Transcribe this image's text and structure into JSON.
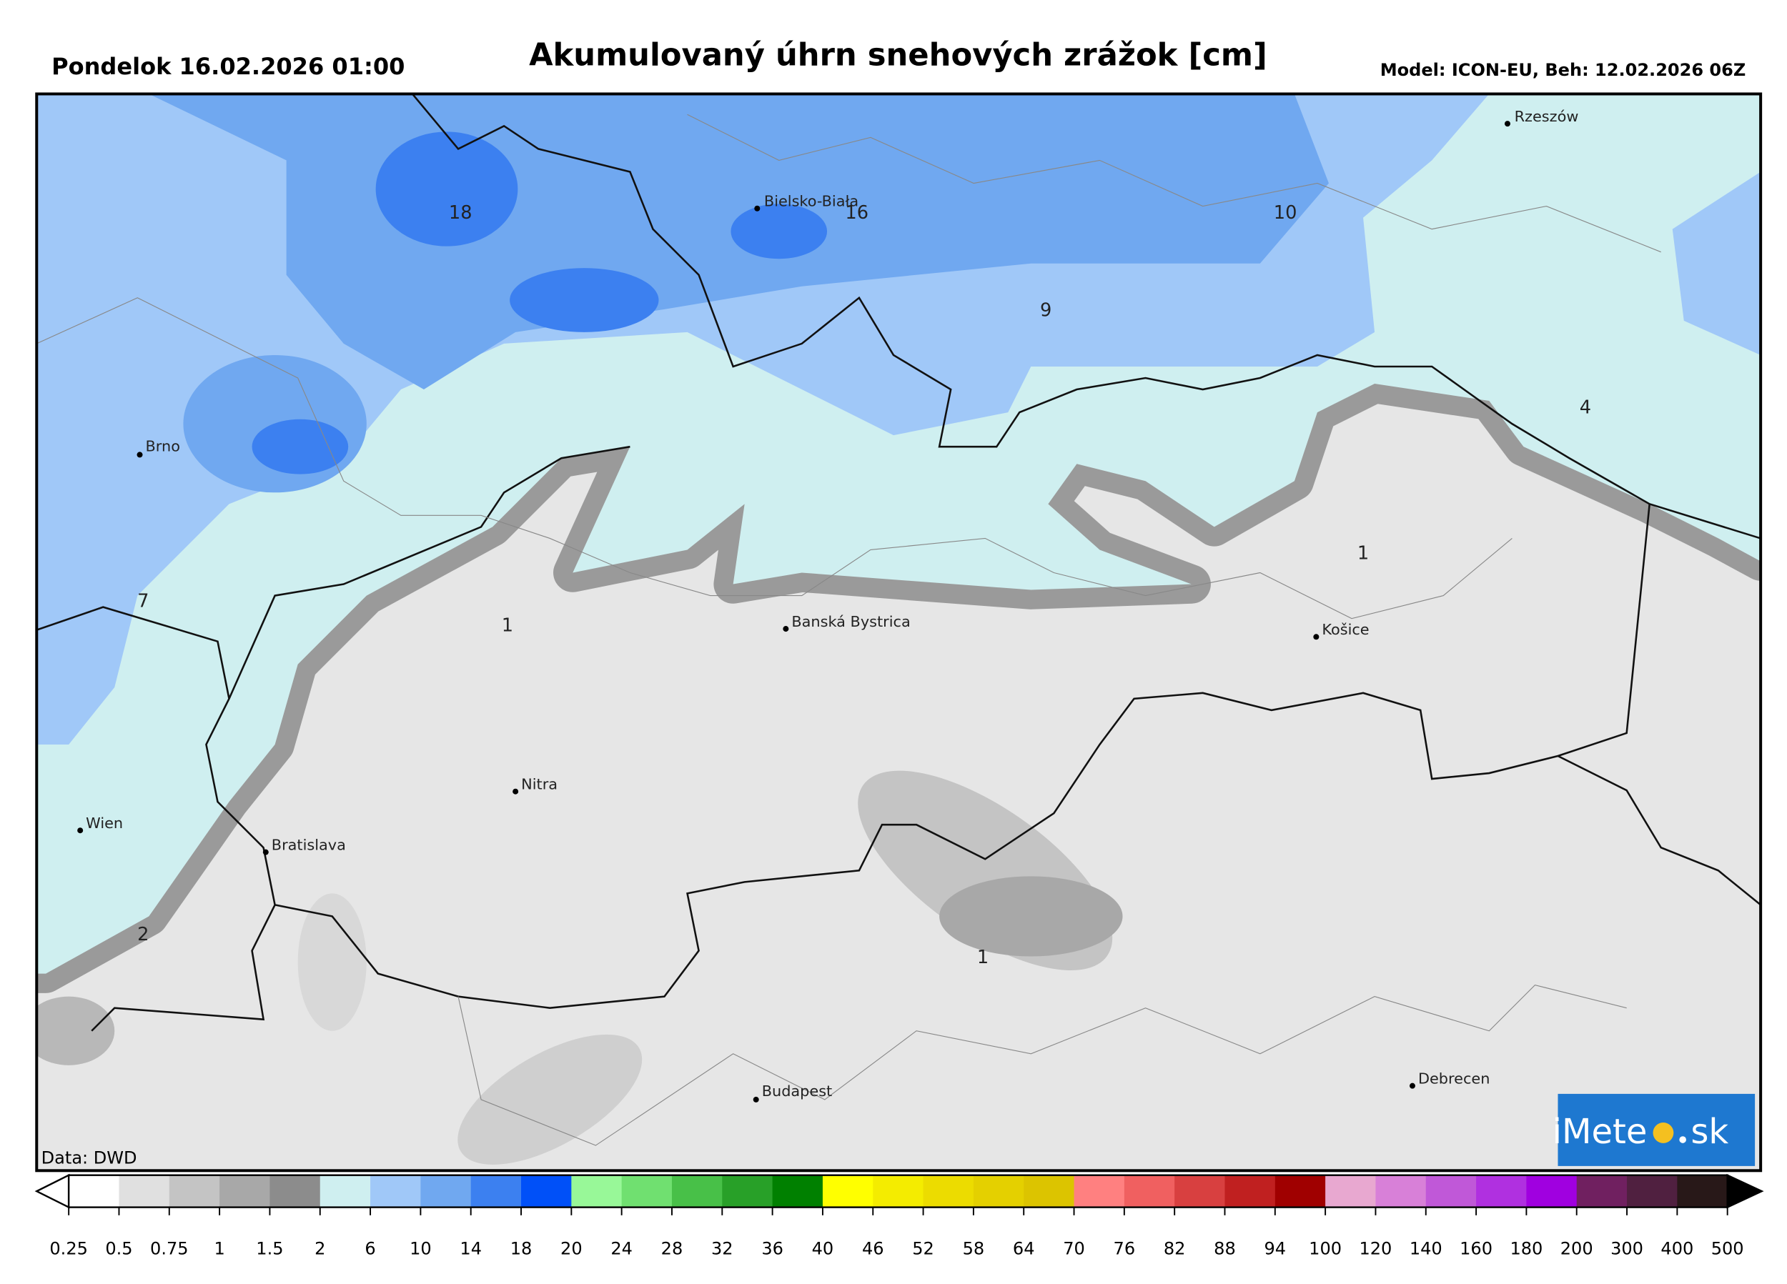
{
  "header": {
    "date": "Pondelok 16.02.2026 01:00",
    "title": "Akumulovaný úhrn snehových zrážok [cm]",
    "model": "Model: ICON-EU, Beh: 12.02.2026 06Z"
  },
  "map": {
    "cities": [
      "Rzeszów",
      "Bielsko-Biała",
      "Brno",
      "Banská Bystrica",
      "Košice",
      "Nitra",
      "Wien",
      "Bratislava",
      "Budapest",
      "Debrecen"
    ],
    "contour_labels": [
      18,
      16,
      10,
      9,
      4,
      7,
      1,
      1,
      1,
      2
    ],
    "credit": "Data: DWD",
    "logo": {
      "left": "iMete",
      "right": "sk"
    }
  },
  "colorbar": {
    "ticks": [
      0.25,
      0.5,
      0.75,
      1,
      1.5,
      2,
      6,
      10,
      14,
      18,
      20,
      24,
      28,
      32,
      36,
      40,
      46,
      52,
      58,
      64,
      70,
      76,
      82,
      88,
      94,
      100,
      120,
      140,
      160,
      180,
      200,
      300,
      400,
      500
    ],
    "colors": [
      "#ffffff",
      "#e0e0e0",
      "#c4c4c4",
      "#a8a8a8",
      "#8c8c8c",
      "#cfeff0",
      "#a0c8f8",
      "#70a8f0",
      "#3c80f0",
      "#0050f8",
      "#98f898",
      "#70e070",
      "#48c048",
      "#28a028",
      "#008000",
      "#ffff00",
      "#f4ec00",
      "#ecdc00",
      "#e4d000",
      "#dcc400",
      "#ff8080",
      "#f06060",
      "#d84040",
      "#c02020",
      "#a00000",
      "#e8a8d0",
      "#d880d8",
      "#c058d8",
      "#b030e0",
      "#a000e0",
      "#702060",
      "#502040",
      "#281818"
    ],
    "under_color": "#ffffff",
    "over_color": "#000000"
  }
}
